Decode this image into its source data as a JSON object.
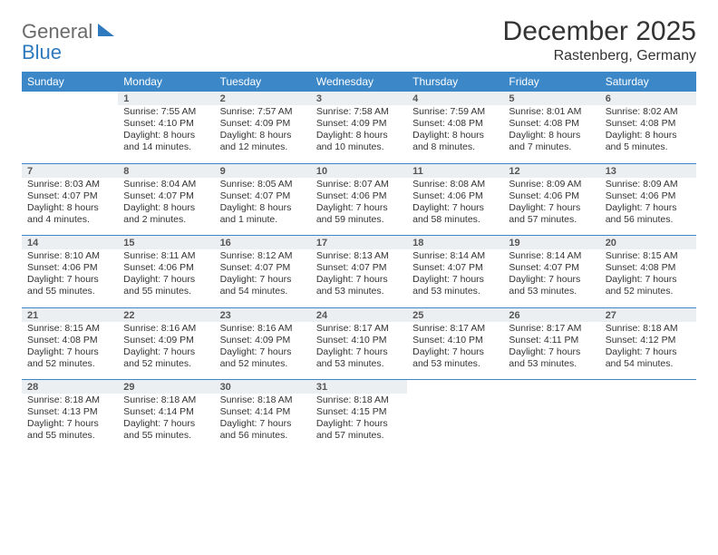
{
  "logo": {
    "word1": "General",
    "word2": "Blue"
  },
  "title": "December 2025",
  "location": "Rastenberg, Germany",
  "colors": {
    "header_bg": "#3b87c8",
    "header_text": "#ffffff",
    "daynum_bg": "#eceff1",
    "border": "#3b87c8",
    "text": "#333333",
    "logo_gray": "#6a6a6a",
    "logo_blue": "#2f7abf"
  },
  "weekdays": [
    "Sunday",
    "Monday",
    "Tuesday",
    "Wednesday",
    "Thursday",
    "Friday",
    "Saturday"
  ],
  "weeks": [
    {
      "days": [
        null,
        {
          "n": "1",
          "sr": "Sunrise: 7:55 AM",
          "ss": "Sunset: 4:10 PM",
          "dl": "Daylight: 8 hours and 14 minutes."
        },
        {
          "n": "2",
          "sr": "Sunrise: 7:57 AM",
          "ss": "Sunset: 4:09 PM",
          "dl": "Daylight: 8 hours and 12 minutes."
        },
        {
          "n": "3",
          "sr": "Sunrise: 7:58 AM",
          "ss": "Sunset: 4:09 PM",
          "dl": "Daylight: 8 hours and 10 minutes."
        },
        {
          "n": "4",
          "sr": "Sunrise: 7:59 AM",
          "ss": "Sunset: 4:08 PM",
          "dl": "Daylight: 8 hours and 8 minutes."
        },
        {
          "n": "5",
          "sr": "Sunrise: 8:01 AM",
          "ss": "Sunset: 4:08 PM",
          "dl": "Daylight: 8 hours and 7 minutes."
        },
        {
          "n": "6",
          "sr": "Sunrise: 8:02 AM",
          "ss": "Sunset: 4:08 PM",
          "dl": "Daylight: 8 hours and 5 minutes."
        }
      ]
    },
    {
      "days": [
        {
          "n": "7",
          "sr": "Sunrise: 8:03 AM",
          "ss": "Sunset: 4:07 PM",
          "dl": "Daylight: 8 hours and 4 minutes."
        },
        {
          "n": "8",
          "sr": "Sunrise: 8:04 AM",
          "ss": "Sunset: 4:07 PM",
          "dl": "Daylight: 8 hours and 2 minutes."
        },
        {
          "n": "9",
          "sr": "Sunrise: 8:05 AM",
          "ss": "Sunset: 4:07 PM",
          "dl": "Daylight: 8 hours and 1 minute."
        },
        {
          "n": "10",
          "sr": "Sunrise: 8:07 AM",
          "ss": "Sunset: 4:06 PM",
          "dl": "Daylight: 7 hours and 59 minutes."
        },
        {
          "n": "11",
          "sr": "Sunrise: 8:08 AM",
          "ss": "Sunset: 4:06 PM",
          "dl": "Daylight: 7 hours and 58 minutes."
        },
        {
          "n": "12",
          "sr": "Sunrise: 8:09 AM",
          "ss": "Sunset: 4:06 PM",
          "dl": "Daylight: 7 hours and 57 minutes."
        },
        {
          "n": "13",
          "sr": "Sunrise: 8:09 AM",
          "ss": "Sunset: 4:06 PM",
          "dl": "Daylight: 7 hours and 56 minutes."
        }
      ]
    },
    {
      "days": [
        {
          "n": "14",
          "sr": "Sunrise: 8:10 AM",
          "ss": "Sunset: 4:06 PM",
          "dl": "Daylight: 7 hours and 55 minutes."
        },
        {
          "n": "15",
          "sr": "Sunrise: 8:11 AM",
          "ss": "Sunset: 4:06 PM",
          "dl": "Daylight: 7 hours and 55 minutes."
        },
        {
          "n": "16",
          "sr": "Sunrise: 8:12 AM",
          "ss": "Sunset: 4:07 PM",
          "dl": "Daylight: 7 hours and 54 minutes."
        },
        {
          "n": "17",
          "sr": "Sunrise: 8:13 AM",
          "ss": "Sunset: 4:07 PM",
          "dl": "Daylight: 7 hours and 53 minutes."
        },
        {
          "n": "18",
          "sr": "Sunrise: 8:14 AM",
          "ss": "Sunset: 4:07 PM",
          "dl": "Daylight: 7 hours and 53 minutes."
        },
        {
          "n": "19",
          "sr": "Sunrise: 8:14 AM",
          "ss": "Sunset: 4:07 PM",
          "dl": "Daylight: 7 hours and 53 minutes."
        },
        {
          "n": "20",
          "sr": "Sunrise: 8:15 AM",
          "ss": "Sunset: 4:08 PM",
          "dl": "Daylight: 7 hours and 52 minutes."
        }
      ]
    },
    {
      "days": [
        {
          "n": "21",
          "sr": "Sunrise: 8:15 AM",
          "ss": "Sunset: 4:08 PM",
          "dl": "Daylight: 7 hours and 52 minutes."
        },
        {
          "n": "22",
          "sr": "Sunrise: 8:16 AM",
          "ss": "Sunset: 4:09 PM",
          "dl": "Daylight: 7 hours and 52 minutes."
        },
        {
          "n": "23",
          "sr": "Sunrise: 8:16 AM",
          "ss": "Sunset: 4:09 PM",
          "dl": "Daylight: 7 hours and 52 minutes."
        },
        {
          "n": "24",
          "sr": "Sunrise: 8:17 AM",
          "ss": "Sunset: 4:10 PM",
          "dl": "Daylight: 7 hours and 53 minutes."
        },
        {
          "n": "25",
          "sr": "Sunrise: 8:17 AM",
          "ss": "Sunset: 4:10 PM",
          "dl": "Daylight: 7 hours and 53 minutes."
        },
        {
          "n": "26",
          "sr": "Sunrise: 8:17 AM",
          "ss": "Sunset: 4:11 PM",
          "dl": "Daylight: 7 hours and 53 minutes."
        },
        {
          "n": "27",
          "sr": "Sunrise: 8:18 AM",
          "ss": "Sunset: 4:12 PM",
          "dl": "Daylight: 7 hours and 54 minutes."
        }
      ]
    },
    {
      "days": [
        {
          "n": "28",
          "sr": "Sunrise: 8:18 AM",
          "ss": "Sunset: 4:13 PM",
          "dl": "Daylight: 7 hours and 55 minutes."
        },
        {
          "n": "29",
          "sr": "Sunrise: 8:18 AM",
          "ss": "Sunset: 4:14 PM",
          "dl": "Daylight: 7 hours and 55 minutes."
        },
        {
          "n": "30",
          "sr": "Sunrise: 8:18 AM",
          "ss": "Sunset: 4:14 PM",
          "dl": "Daylight: 7 hours and 56 minutes."
        },
        {
          "n": "31",
          "sr": "Sunrise: 8:18 AM",
          "ss": "Sunset: 4:15 PM",
          "dl": "Daylight: 7 hours and 57 minutes."
        },
        null,
        null,
        null
      ]
    }
  ]
}
